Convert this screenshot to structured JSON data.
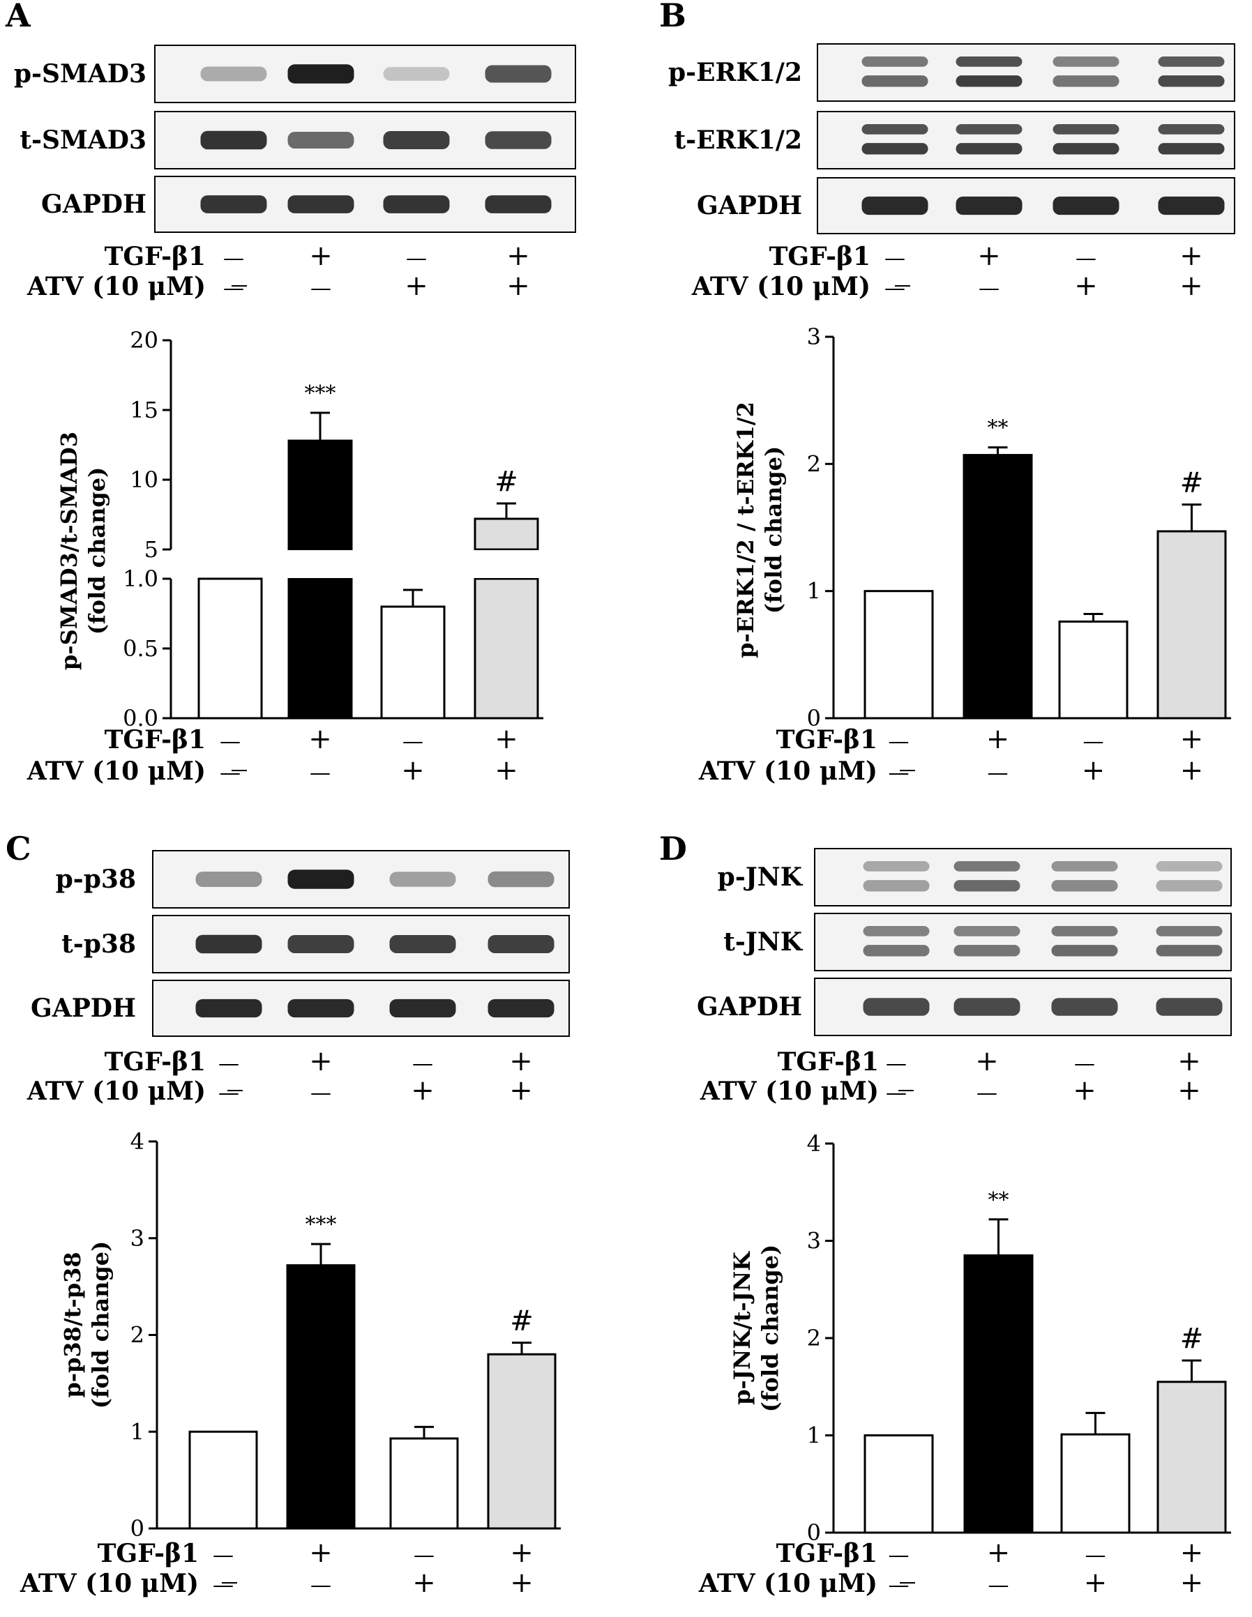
{
  "treatment_labels": {
    "tgf": "TGF-β1",
    "atv": "ATV (10 μM)",
    "plus": "+",
    "minus": "—"
  },
  "treatments": {
    "tgf": [
      "-",
      "+",
      "-",
      "+"
    ],
    "atv": [
      "-",
      "-",
      "+",
      "+"
    ]
  },
  "colors": {
    "control_bar": "#ffffff",
    "tgf_bar": "#000000",
    "atv_bar": "#ffffff",
    "combo_bar": "#dedede",
    "axis": "#000000"
  },
  "panels": [
    {
      "letter": "A",
      "blots": [
        {
          "label": "p-SMAD3",
          "intensity": [
            0.3,
            0.95,
            0.18,
            0.7
          ],
          "doublet": false
        },
        {
          "label": "t-SMAD3",
          "intensity": [
            0.85,
            0.6,
            0.8,
            0.75
          ],
          "doublet": false
        },
        {
          "label": "GAPDH",
          "intensity": [
            0.85,
            0.85,
            0.85,
            0.85
          ],
          "doublet": false
        }
      ]
    },
    {
      "letter": "B",
      "blots": [
        {
          "label": "p-ERK1/2",
          "intensity": [
            0.6,
            0.8,
            0.55,
            0.75
          ],
          "doublet": true
        },
        {
          "label": "t-ERK1/2",
          "intensity": [
            0.8,
            0.8,
            0.8,
            0.8
          ],
          "doublet": true
        },
        {
          "label": "GAPDH",
          "intensity": [
            0.9,
            0.9,
            0.9,
            0.9
          ],
          "doublet": false
        }
      ]
    },
    {
      "letter": "C",
      "blots": [
        {
          "label": "p-p38",
          "intensity": [
            0.4,
            0.95,
            0.35,
            0.45
          ],
          "doublet": false
        },
        {
          "label": "t-p38",
          "intensity": [
            0.85,
            0.8,
            0.8,
            0.8
          ],
          "doublet": false
        },
        {
          "label": "GAPDH",
          "intensity": [
            0.9,
            0.9,
            0.9,
            0.9
          ],
          "doublet": false
        }
      ]
    },
    {
      "letter": "D",
      "blots": [
        {
          "label": "p-JNK",
          "intensity": [
            0.35,
            0.6,
            0.45,
            0.3
          ],
          "doublet": true
        },
        {
          "label": "t-JNK",
          "intensity": [
            0.55,
            0.55,
            0.6,
            0.6
          ],
          "doublet": true
        },
        {
          "label": "GAPDH",
          "intensity": [
            0.75,
            0.75,
            0.75,
            0.75
          ],
          "doublet": false
        }
      ]
    }
  ],
  "chart_data": [
    {
      "panel": "A",
      "type": "bar",
      "ylabel": [
        "p-SMAD3/t-SMAD3",
        "(fold change)"
      ],
      "broken_axis": true,
      "lower_ylim": [
        0,
        1
      ],
      "lower_ticks": [
        "0.0",
        "0.5",
        "1.0"
      ],
      "upper_ylim": [
        5,
        20
      ],
      "upper_ticks": [
        "5",
        "10",
        "15",
        "20"
      ],
      "values": [
        1.0,
        12.8,
        0.8,
        7.2
      ],
      "errors": [
        0,
        2.0,
        0.12,
        1.1
      ],
      "annotations": [
        "",
        "***",
        "",
        "#"
      ]
    },
    {
      "panel": "B",
      "type": "bar",
      "ylabel": [
        "p-ERK1/2 / t-ERK1/2",
        "(fold change)"
      ],
      "ylim": [
        0,
        3
      ],
      "ticks": [
        "0",
        "1",
        "2",
        "3"
      ],
      "values": [
        1.0,
        2.07,
        0.76,
        1.47
      ],
      "errors": [
        0,
        0.06,
        0.06,
        0.21
      ],
      "annotations": [
        "",
        "**",
        "",
        "#"
      ]
    },
    {
      "panel": "C",
      "type": "bar",
      "ylabel": [
        "p-p38/t-p38",
        "(fold change)"
      ],
      "ylim": [
        0,
        4
      ],
      "ticks": [
        "0",
        "1",
        "2",
        "3",
        "4"
      ],
      "values": [
        1.0,
        2.72,
        0.93,
        1.8
      ],
      "errors": [
        0,
        0.22,
        0.12,
        0.12
      ],
      "annotations": [
        "",
        "***",
        "",
        "#"
      ]
    },
    {
      "panel": "D",
      "type": "bar",
      "ylabel": [
        "p-JNK/t-JNK",
        "(fold change)"
      ],
      "ylim": [
        0,
        4
      ],
      "ticks": [
        "0",
        "1",
        "2",
        "3",
        "4"
      ],
      "values": [
        1.0,
        2.85,
        1.01,
        1.55
      ],
      "errors": [
        0,
        0.37,
        0.22,
        0.22
      ],
      "annotations": [
        "",
        "**",
        "",
        "#"
      ]
    }
  ]
}
